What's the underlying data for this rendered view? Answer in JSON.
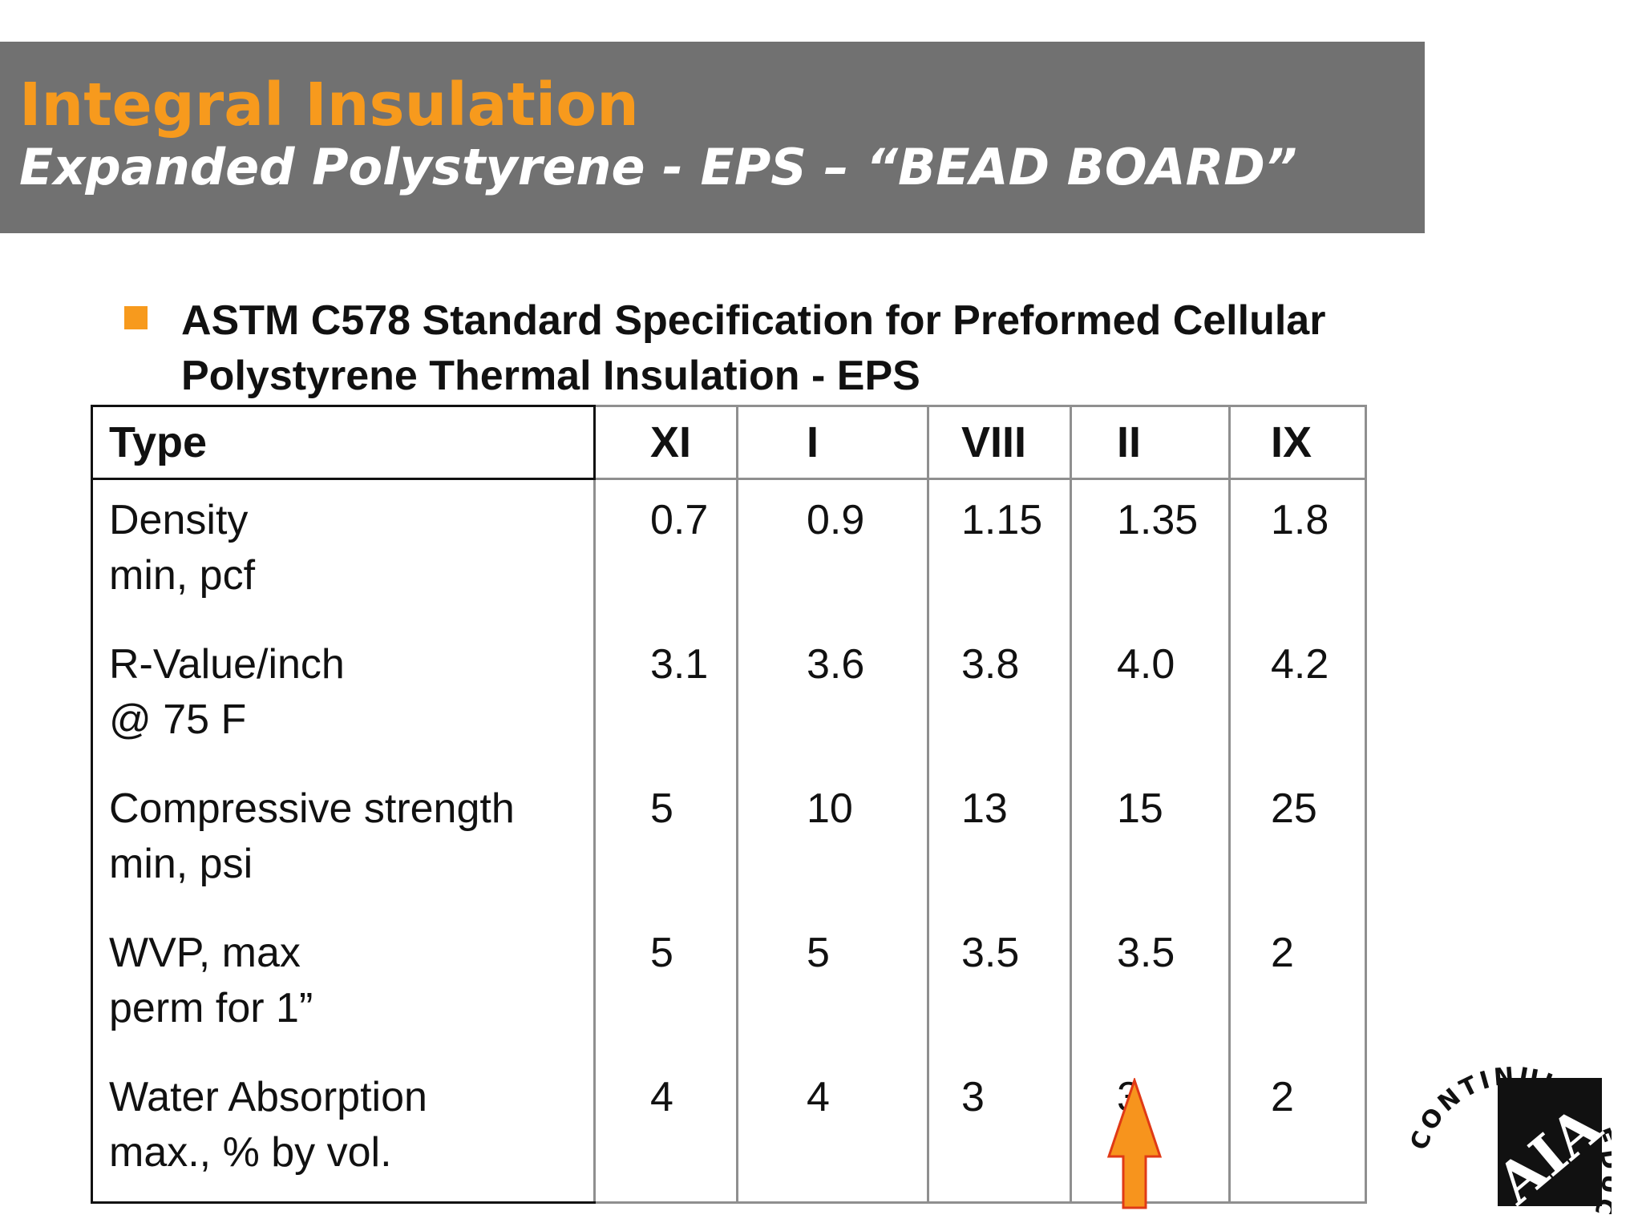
{
  "header": {
    "title": "Integral Insulation",
    "subtitle": "Expanded Polystyrene - EPS – “BEAD BOARD”"
  },
  "bullet": {
    "line1": "ASTM C578 Standard Specification for Preformed Cellular",
    "line2": "Polystyrene Thermal Insulation - EPS"
  },
  "table": {
    "header": [
      "Type",
      "XI",
      "I",
      "VIII",
      "II",
      "IX"
    ],
    "rows": [
      {
        "label1": "Density",
        "label2": "min, pcf",
        "values": [
          "0.7",
          "0.9",
          "1.15",
          "1.35",
          "1.8"
        ]
      },
      {
        "label1": "R-Value/inch",
        "label2": "@ 75 F",
        "values": [
          "3.1",
          "3.6",
          "3.8",
          "4.0",
          "4.2"
        ]
      },
      {
        "label1": "Compressive strength",
        "label2": "min, psi",
        "values": [
          "5",
          "10",
          "13",
          "15",
          "25"
        ]
      },
      {
        "label1": "WVP, max",
        "label2": "perm for 1”",
        "values": [
          "5",
          "5",
          "3.5",
          "3.5",
          "2"
        ]
      },
      {
        "label1": "Water Absorption",
        "label2": "max., % by vol.",
        "values": [
          "4",
          "4",
          "3",
          "3",
          "2"
        ]
      }
    ]
  },
  "highlight_arrow": {
    "color": "#f7941d",
    "icon": "up-arrow-icon",
    "column": "II"
  },
  "logo": {
    "ring_text": "CONTINUING EDUCATION",
    "mark": "AIA"
  },
  "colors": {
    "header_bg": "#717171",
    "accent_orange": "#f79a1d",
    "title_white": "#ffffff"
  }
}
